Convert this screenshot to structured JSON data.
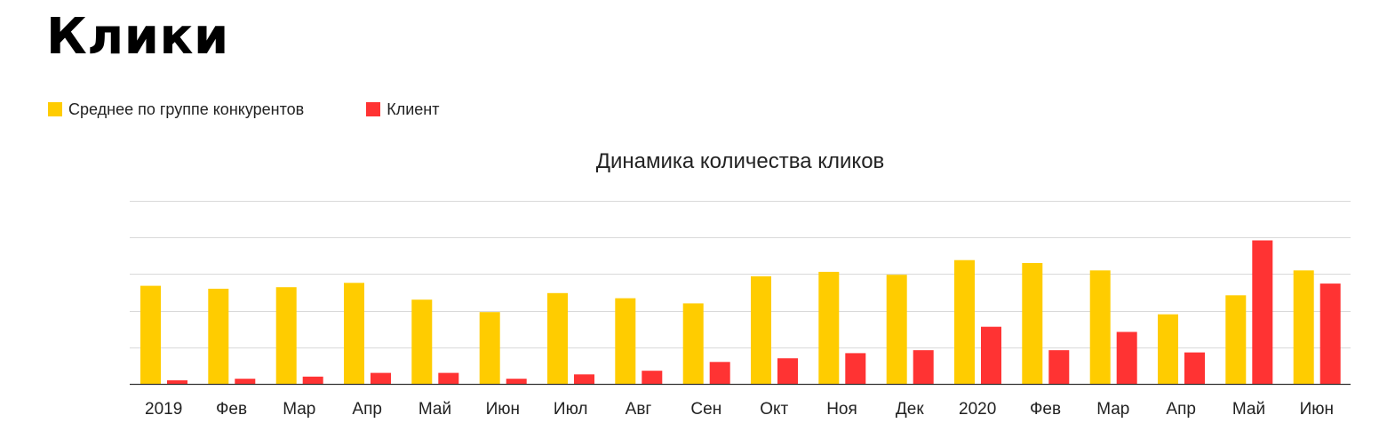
{
  "page": {
    "title": "Клики"
  },
  "chart_data": {
    "type": "bar",
    "title": "Динамика количества кликов",
    "xlabel": "",
    "ylabel": "",
    "categories": [
      "2019",
      "Фев",
      "Мар",
      "Апр",
      "Май",
      "Июн",
      "Июл",
      "Авг",
      "Сен",
      "Окт",
      "Ноя",
      "Дек",
      "2020",
      "Фев",
      "Мар",
      "Апр",
      "Май",
      "Июн"
    ],
    "series": [
      {
        "name": "Среднее по группе конкурентов",
        "color": "#FFCC00",
        "values": [
          2.68,
          2.6,
          2.64,
          2.76,
          2.3,
          1.96,
          2.48,
          2.34,
          2.2,
          2.94,
          3.06,
          2.98,
          3.38,
          3.3,
          3.1,
          1.9,
          2.42,
          3.1
        ]
      },
      {
        "name": "Клиент",
        "color": "#FF3333",
        "values": [
          0.1,
          0.14,
          0.2,
          0.3,
          0.3,
          0.14,
          0.26,
          0.36,
          0.6,
          0.7,
          0.84,
          0.92,
          1.56,
          0.92,
          1.42,
          0.86,
          3.92,
          2.74
        ]
      }
    ],
    "ylim": [
      0,
      5
    ],
    "y_gridlines": [
      1,
      2,
      3,
      4,
      5
    ],
    "y_tick_labels_shown": false,
    "grid": true,
    "legend_position": "top-left"
  }
}
